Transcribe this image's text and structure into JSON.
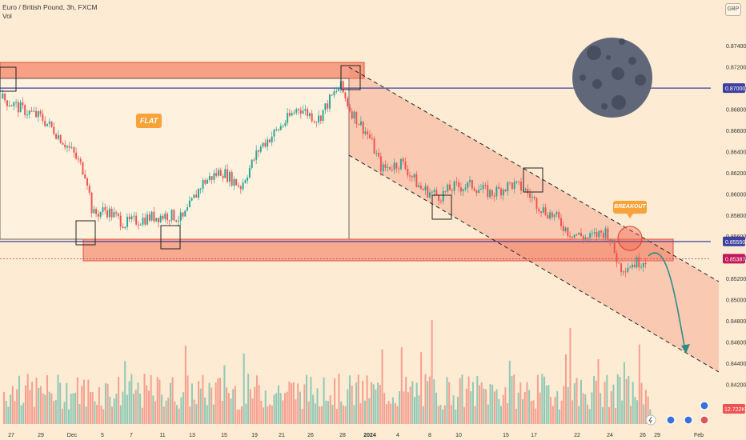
{
  "header": {
    "symbol": "Euro / British Pound, 3h, FXCM",
    "volume_label": "Vol"
  },
  "currency_button": "GBP",
  "annotations": {
    "flat": "FLAT",
    "breakout": "BREAKOUT"
  },
  "colors": {
    "background": "#fdecd3",
    "up": "#26a69a",
    "down": "#ef5350",
    "zone": "#f4876c",
    "level_line": "#3f3fa0",
    "badge": "#f7a33a",
    "moon": "#5f6778",
    "arrow": "#2e8b88",
    "price_tag": "#c2185b"
  },
  "chart_data": {
    "type": "candlestick",
    "title": "Euro / British Pound, 3h, FXCM",
    "ylim": [
      0.8418,
      0.875
    ],
    "y_ticks": [
      "0.87400",
      "0.87200",
      "0.87000",
      "0.86800",
      "0.86600",
      "0.86400",
      "0.86200",
      "0.86000",
      "0.85800",
      "0.85600",
      "0.85400",
      "0.85200",
      "0.85000",
      "0.84800",
      "0.84600",
      "0.84400",
      "0.84200"
    ],
    "x_ticks": [
      "27",
      "29",
      "Dec",
      "5",
      "7",
      "11",
      "13",
      "15",
      "19",
      "21",
      "26",
      "28",
      "2024",
      "4",
      "8",
      "10",
      "15",
      "17",
      "22",
      "24",
      "26",
      "29",
      "Feb"
    ],
    "price_path": [
      {
        "t": 0,
        "p": 0.869
      },
      {
        "t": 0.03,
        "p": 0.868
      },
      {
        "t": 0.06,
        "p": 0.8672
      },
      {
        "t": 0.08,
        "p": 0.866
      },
      {
        "t": 0.11,
        "p": 0.8638
      },
      {
        "t": 0.13,
        "p": 0.8618
      },
      {
        "t": 0.14,
        "p": 0.858
      },
      {
        "t": 0.16,
        "p": 0.8585
      },
      {
        "t": 0.19,
        "p": 0.8572
      },
      {
        "t": 0.23,
        "p": 0.8578
      },
      {
        "t": 0.26,
        "p": 0.858
      },
      {
        "t": 0.28,
        "p": 0.8576
      },
      {
        "t": 0.31,
        "p": 0.861
      },
      {
        "t": 0.34,
        "p": 0.8622
      },
      {
        "t": 0.37,
        "p": 0.8607
      },
      {
        "t": 0.4,
        "p": 0.8644
      },
      {
        "t": 0.43,
        "p": 0.8662
      },
      {
        "t": 0.46,
        "p": 0.8682
      },
      {
        "t": 0.49,
        "p": 0.867
      },
      {
        "t": 0.51,
        "p": 0.869
      },
      {
        "t": 0.525,
        "p": 0.8702
      },
      {
        "t": 0.54,
        "p": 0.868
      },
      {
        "t": 0.57,
        "p": 0.8654
      },
      {
        "t": 0.59,
        "p": 0.8623
      },
      {
        "t": 0.62,
        "p": 0.863
      },
      {
        "t": 0.65,
        "p": 0.8605
      },
      {
        "t": 0.68,
        "p": 0.8598
      },
      {
        "t": 0.7,
        "p": 0.8606
      },
      {
        "t": 0.73,
        "p": 0.8608
      },
      {
        "t": 0.76,
        "p": 0.86
      },
      {
        "t": 0.79,
        "p": 0.8609
      },
      {
        "t": 0.81,
        "p": 0.8605
      },
      {
        "t": 0.84,
        "p": 0.8585
      },
      {
        "t": 0.86,
        "p": 0.8578
      },
      {
        "t": 0.88,
        "p": 0.8564
      },
      {
        "t": 0.91,
        "p": 0.8558
      },
      {
        "t": 0.94,
        "p": 0.8565
      },
      {
        "t": 0.96,
        "p": 0.853
      },
      {
        "t": 1.0,
        "p": 0.8538
      }
    ],
    "levels": [
      {
        "name": "resistance",
        "value": 0.87,
        "label": "0.87000"
      },
      {
        "name": "support",
        "value": 0.8555,
        "label": "0.85550"
      },
      {
        "name": "last-price",
        "value": 0.85387,
        "label": "0.85387"
      }
    ],
    "volume_label": "12.722K",
    "grid": false
  }
}
